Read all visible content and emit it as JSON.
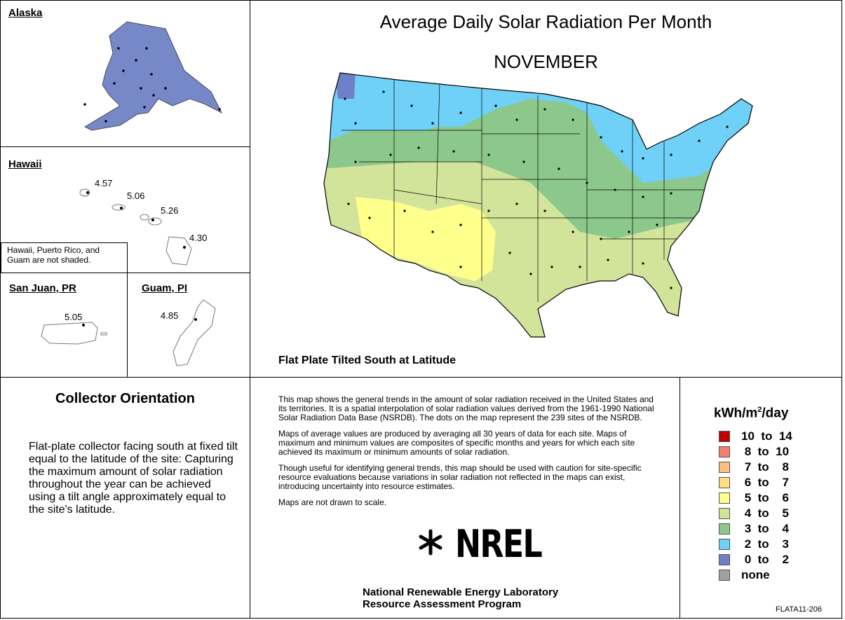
{
  "alaska": {
    "title": "Alaska"
  },
  "hawaii": {
    "title": "Hawaii",
    "values": [
      "4.57",
      "5.06",
      "5.26",
      "4.30"
    ],
    "note": "Hawaii, Puerto Rico, and Guam are not shaded."
  },
  "sanjuan": {
    "title": "San Juan, PR",
    "value": "5.05"
  },
  "guam": {
    "title": "Guam, PI",
    "value": "4.85"
  },
  "main": {
    "title": "Average Daily Solar Radiation Per Month",
    "month": "NOVEMBER",
    "subtitle": "Flat Plate Tilted South at Latitude"
  },
  "orientation": {
    "title": "Collector Orientation",
    "text": "Flat-plate collector facing south at fixed tilt equal to the latitude of the site:  Capturing the maximum amount of solar radiation throughout the year can be achieved using a tilt angle approximately equal to the site's latitude."
  },
  "description": {
    "p1": "This map shows the general trends in the amount of solar radiation received in the United States and its territories.  It is a spatial interpolation of solar radiation values derived from the 1961-1990 National Solar Radiation Data Base (NSRDB).  The dots on the map represent the 239 sites of the NSRDB.",
    "p2": "Maps of average values are produced by averaging all 30 years of data for each site. Maps of maximum and minimum values are composites of specific months and years for which each site achieved its maximum or minimum amounts of solar radiation.",
    "p3": "Though useful for identifying general trends, this map should be used with caution for site-specific resource evaluations because variations in solar radiation not reflected in the maps can exist, introducing uncertainty into resource estimates.",
    "p4": "Maps are not drawn to scale."
  },
  "logo": {
    "text": "NREL"
  },
  "org": {
    "line1": "National Renewable Energy Laboratory",
    "line2": "Resource Assessment Program"
  },
  "legend": {
    "title_unit": "kWh/m",
    "title_sup": "2",
    "title_rest": "/day",
    "items": [
      {
        "label": "10  to  14",
        "color": "#c00000"
      },
      {
        "label": " 8  to  10",
        "color": "#f08070"
      },
      {
        "label": " 7  to    8",
        "color": "#ffbf80"
      },
      {
        "label": " 6  to    7",
        "color": "#ffdf80"
      },
      {
        "label": " 5  to    6",
        "color": "#ffff8c"
      },
      {
        "label": " 4  to    5",
        "color": "#d2e49a"
      },
      {
        "label": " 3  to    4",
        "color": "#8cc88c"
      },
      {
        "label": " 2  to    3",
        "color": "#6fd0f8"
      },
      {
        "label": " 0  to    2",
        "color": "#6f7fc8"
      },
      {
        "label": "none",
        "color": "#a0a0a0"
      }
    ]
  },
  "map_code": "FLATA11-206"
}
